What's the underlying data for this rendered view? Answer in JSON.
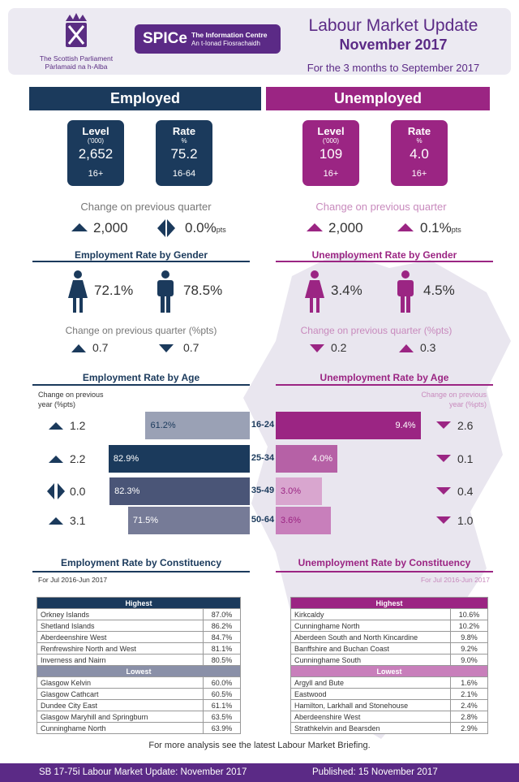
{
  "header": {
    "logo_line1": "The Scottish Parliament",
    "logo_line2": "Pàrlamaid na h-Alba",
    "spice_big": "SPICe",
    "spice_line1": "The Information Centre",
    "spice_line2": "An t-Ionad Fiosrachaidh",
    "title": "Labour Market Update",
    "subtitle": "November 2017",
    "period": "For the 3 months to September 2017"
  },
  "employed": {
    "banner": "Employed",
    "level": {
      "label": "Level",
      "unit": "('000)",
      "value": "2,652",
      "age": "16+"
    },
    "rate": {
      "label": "Rate",
      "unit": "%",
      "value": "75.2",
      "age": "16-64"
    },
    "change_label": "Change on previous quarter",
    "level_change": "2,000",
    "rate_change": "0.0%",
    "rate_change_suffix": "pts",
    "gender_title": "Employment Rate by Gender",
    "female_rate": "72.1%",
    "male_rate": "78.5%",
    "gender_change_label": "Change on previous quarter (%pts)",
    "female_change": "0.7",
    "male_change": "0.7",
    "age_title": "Employment Rate by Age",
    "age_change_label1": "Change on previous",
    "age_change_label2": "year (%pts)",
    "constituency_title": "Employment Rate by Constituency",
    "constituency_period": "For Jul 2016-Jun 2017",
    "highest_label": "Highest",
    "lowest_label": "Lowest",
    "highest": [
      {
        "name": "Orkney Islands",
        "value": "87.0%"
      },
      {
        "name": "Shetland Islands",
        "value": "86.2%"
      },
      {
        "name": "Aberdeenshire West",
        "value": "84.7%"
      },
      {
        "name": "Renfrewshire North and West",
        "value": "81.1%"
      },
      {
        "name": "Inverness and Nairn",
        "value": "80.5%"
      }
    ],
    "lowest": [
      {
        "name": "Glasgow Kelvin",
        "value": "60.0%"
      },
      {
        "name": "Glasgow Cathcart",
        "value": "60.5%"
      },
      {
        "name": "Dundee City East",
        "value": "61.1%"
      },
      {
        "name": "Glasgow Maryhill and Springburn",
        "value": "63.5%"
      },
      {
        "name": "Cunninghame North",
        "value": "63.9%"
      }
    ]
  },
  "unemployed": {
    "banner": "Unemployed",
    "level": {
      "label": "Level",
      "unit": "('000)",
      "value": "109",
      "age": "16+"
    },
    "rate": {
      "label": "Rate",
      "unit": "%",
      "value": "4.0",
      "age": "16+"
    },
    "change_label": "Change on previous quarter",
    "level_change": "2,000",
    "rate_change": "0.1%",
    "rate_change_suffix": "pts",
    "gender_title": "Unemployment Rate by Gender",
    "female_rate": "3.4%",
    "male_rate": "4.5%",
    "gender_change_label": "Change on previous quarter (%pts)",
    "female_change": "0.2",
    "male_change": "0.3",
    "age_title": "Unemployment Rate by Age",
    "age_change_label1": "Change on previous",
    "age_change_label2": "year (%pts)",
    "constituency_title": "Unemployment Rate by Constituency",
    "constituency_period": "For Jul 2016-Jun 2017",
    "highest_label": "Highest",
    "lowest_label": "Lowest",
    "highest": [
      {
        "name": "Kirkcaldy",
        "value": "10.6%"
      },
      {
        "name": "Cunninghame North",
        "value": "10.2%"
      },
      {
        "name": "Aberdeen South and North Kincardine",
        "value": "9.8%"
      },
      {
        "name": "Banffshire and Buchan Coast",
        "value": "9.2%"
      },
      {
        "name": "Cunninghame South",
        "value": "9.0%"
      }
    ],
    "lowest": [
      {
        "name": "Argyll and Bute",
        "value": "1.6%"
      },
      {
        "name": "Eastwood",
        "value": "2.1%"
      },
      {
        "name": "Hamilton, Larkhall and Stonehouse",
        "value": "2.4%"
      },
      {
        "name": "Aberdeenshire West",
        "value": "2.8%"
      },
      {
        "name": "Strathkelvin and Bearsden",
        "value": "2.9%"
      }
    ]
  },
  "chart_data": [
    {
      "type": "bar",
      "title": "Employment Rate by Age",
      "categories": [
        "16-24",
        "25-34",
        "35-49",
        "50-64"
      ],
      "values": [
        61.2,
        82.9,
        82.3,
        71.5
      ],
      "labels": [
        "61.2%",
        "82.9%",
        "82.3%",
        "71.5%"
      ],
      "changes": [
        "1.2",
        "2.2",
        "0.0",
        "3.1"
      ],
      "change_directions": [
        "up",
        "up",
        "flat",
        "up"
      ],
      "colors": [
        "#9aa1b5",
        "#1b3a5c",
        "#4a5577",
        "#767b97"
      ]
    },
    {
      "type": "bar",
      "title": "Unemployment Rate by Age",
      "categories": [
        "16-24",
        "25-34",
        "35-49",
        "50-64"
      ],
      "values": [
        9.4,
        4.0,
        3.0,
        3.6
      ],
      "labels": [
        "9.4%",
        "4.0%",
        "3.0%",
        "3.6%"
      ],
      "changes": [
        "2.6",
        "0.1",
        "0.4",
        "1.0"
      ],
      "change_directions": [
        "down",
        "down",
        "down",
        "down"
      ],
      "colors": [
        "#9b2583",
        "#b661a6",
        "#d9a6cf",
        "#c87fbb"
      ]
    }
  ],
  "note": "For more analysis see the latest Labour Market Briefing.",
  "footer": {
    "left": "SB 17-75i Labour Market Update: November 2017",
    "right": "Published: 15 November 2017"
  }
}
